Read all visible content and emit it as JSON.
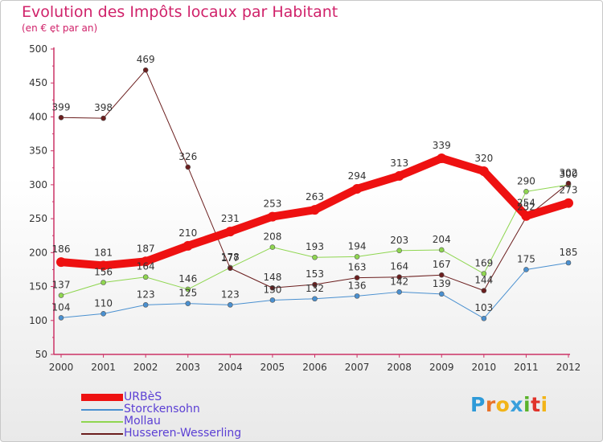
{
  "header": {
    "title": "Evolution des Impôts locaux par Habitant",
    "subtitle": "(en € et par an)"
  },
  "logo": {
    "letters": [
      {
        "ch": "P",
        "color": "#2e9ad8"
      },
      {
        "ch": "r",
        "color": "#e8732a"
      },
      {
        "ch": "o",
        "color": "#f2b418"
      },
      {
        "ch": "x",
        "color": "#3aa0dc"
      },
      {
        "ch": "i",
        "color": "#5ab22a"
      },
      {
        "ch": "t",
        "color": "#e0332a"
      },
      {
        "ch": "i",
        "color": "#f2b418"
      }
    ]
  },
  "chart_data": {
    "type": "line",
    "title": "Evolution des Impôts locaux par Habitant",
    "subtitle": "(en € et par an)",
    "xlabel": "",
    "ylabel": "",
    "ylim": [
      50,
      500
    ],
    "y_ticks": [
      "50",
      "100",
      "150",
      "200",
      "250",
      "300",
      "350",
      "400",
      "450",
      "500"
    ],
    "x": [
      "2000",
      "2001",
      "2002",
      "2003",
      "2004",
      "2005",
      "2006",
      "2007",
      "2008",
      "2009",
      "2010",
      "2011",
      "2012"
    ],
    "grid": false,
    "legend_position": "bottom-left",
    "series": [
      {
        "name": "URBèS",
        "color": "#ee1111",
        "width": 10,
        "label_pos": "above",
        "values": [
          186,
          181,
          187,
          210,
          231,
          253,
          263,
          294,
          313,
          339,
          320,
          254,
          273
        ]
      },
      {
        "name": "Storckensohn",
        "color": "#4a90d0",
        "width": 1,
        "label_pos": "above",
        "values": [
          104,
          110,
          123,
          125,
          123,
          130,
          132,
          136,
          142,
          139,
          103,
          175,
          185
        ]
      },
      {
        "name": "Mollau",
        "color": "#8fd650",
        "width": 1,
        "label_pos": "above",
        "values": [
          137,
          156,
          164,
          146,
          178,
          208,
          193,
          194,
          203,
          204,
          169,
          290,
          300
        ]
      },
      {
        "name": "Husseren-Wesserling",
        "color": "#6b1e1e",
        "width": 1,
        "label_pos": "above",
        "values": [
          399,
          398,
          469,
          326,
          177,
          148,
          153,
          163,
          164,
          167,
          144,
          252,
          302
        ]
      }
    ]
  }
}
